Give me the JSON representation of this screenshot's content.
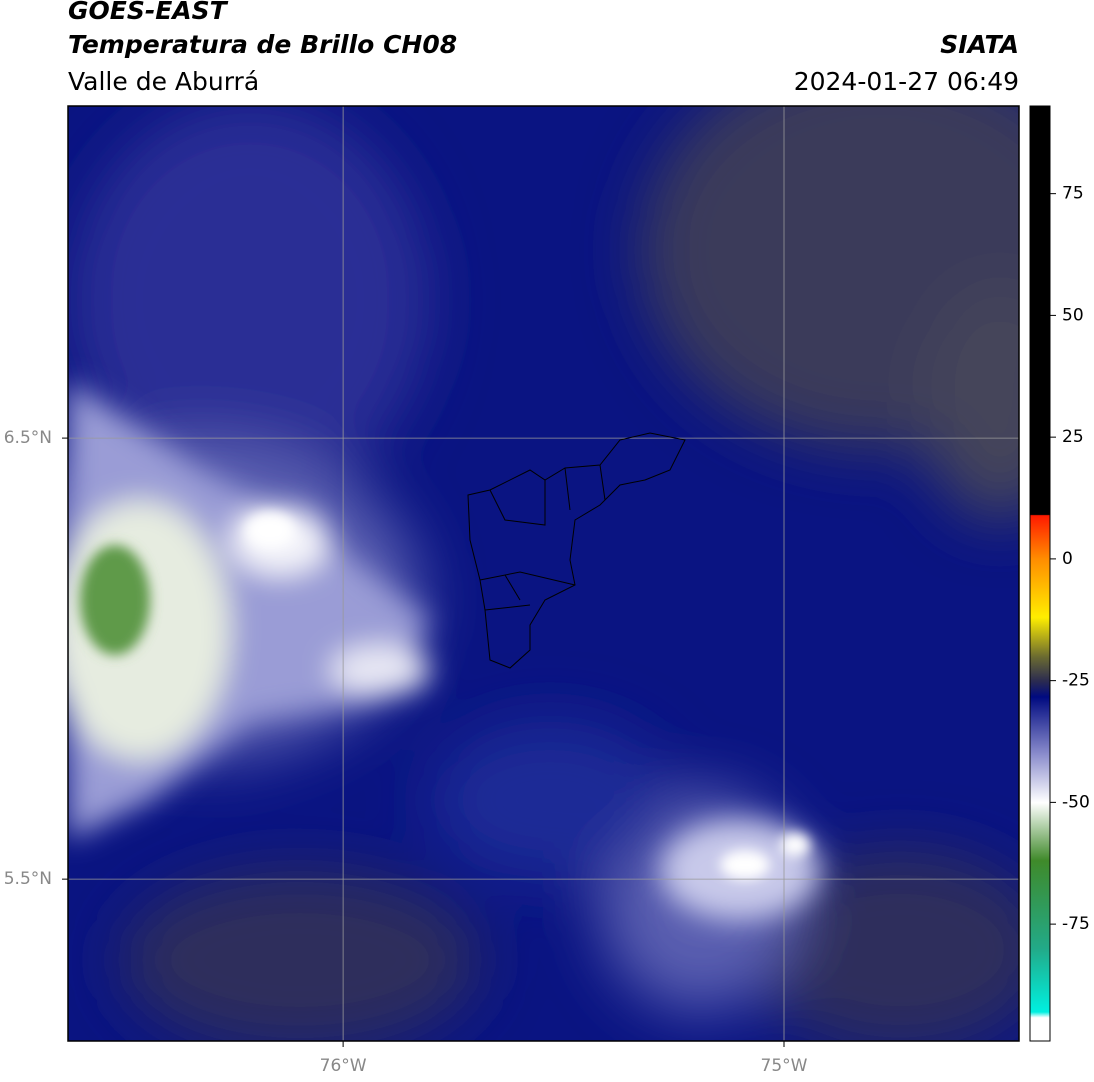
{
  "header": {
    "title": "GOES-EAST",
    "subtitle": "Temperatura de Brillo CH08",
    "region": "Valle de Aburrá",
    "source": "SIATA",
    "datetime": "2024-01-27 06:49"
  },
  "map": {
    "xlim": [
      -76.624,
      -74.467
    ],
    "ylim": [
      5.133,
      7.253
    ],
    "xticks": [
      {
        "value": -76,
        "label": "76°W"
      },
      {
        "value": -75,
        "label": "75°W"
      }
    ],
    "yticks": [
      {
        "value": 5.5,
        "label": "5.5°N"
      },
      {
        "value": 6.5,
        "label": "6.5°N"
      }
    ],
    "grid": true
  },
  "colorbar": {
    "lim": [
      -99,
      93
    ],
    "ticks": [
      -75,
      -50,
      -25,
      0,
      25,
      50,
      75
    ]
  }
}
